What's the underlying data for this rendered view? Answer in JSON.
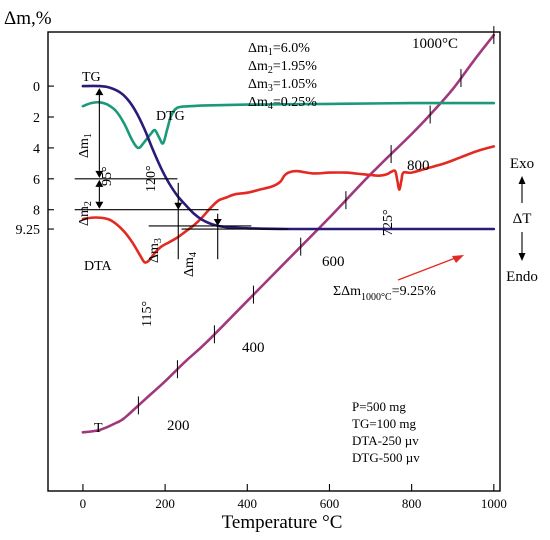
{
  "chart_data": {
    "type": "line",
    "y_title": "Δm,%",
    "x_title": "Temperature °C",
    "xlim": [
      -85,
      1015
    ],
    "x_ticks": [
      0,
      200,
      400,
      600,
      800,
      1000
    ],
    "y_ticks": [
      {
        "label": "0",
        "value": 0
      },
      {
        "label": "2",
        "value": 2
      },
      {
        "label": "4",
        "value": 4
      },
      {
        "label": "6",
        "value": 6
      },
      {
        "label": "8",
        "value": 8
      },
      {
        "label": "9.25",
        "value": 9.25
      }
    ],
    "ylim": [
      -3.5,
      26.2
    ],
    "mass_losses": [
      {
        "prefix": "Δm",
        "sub": "1",
        "value": "=6.0%"
      },
      {
        "prefix": "Δm",
        "sub": "2",
        "value": "=1.95%"
      },
      {
        "prefix": "Δm",
        "sub": "3",
        "value": "=1.05%"
      },
      {
        "prefix": "Δm",
        "sub": "4",
        "value": "=0.25%"
      }
    ],
    "conditions": [
      "P=500 mg",
      "TG=100 mg",
      "DTA-250 µv",
      "DTG-500 µv"
    ],
    "right_axis": {
      "top": "Exo",
      "middle": "ΔT",
      "bottom": "Endo"
    },
    "total_loss": {
      "prefix": "ΣΔm",
      "sub": "1000°C",
      "value": "=9.25%"
    },
    "series": [
      {
        "name": "TG",
        "color": "#2b1a78",
        "x": [
          0,
          40,
          65,
          90,
          110,
          130,
          150,
          170,
          190,
          210,
          230,
          250,
          270,
          290,
          310,
          330,
          360,
          400,
          500,
          700,
          1000
        ],
        "y": [
          0,
          0,
          0.1,
          0.4,
          0.9,
          1.7,
          2.8,
          4.1,
          5.3,
          6.3,
          7.1,
          7.7,
          8.25,
          8.65,
          8.9,
          9.05,
          9.15,
          9.2,
          9.25,
          9.25,
          9.25
        ]
      },
      {
        "name": "DTG",
        "color": "#1a9a78",
        "x": [
          0,
          20,
          40,
          60,
          80,
          100,
          120,
          135,
          150,
          165,
          175,
          185,
          195,
          205,
          215,
          230,
          260,
          300,
          400,
          600,
          800,
          1000
        ],
        "y": [
          1.3,
          1.1,
          1.05,
          1.2,
          1.6,
          2.4,
          3.5,
          4.0,
          3.6,
          3.1,
          2.85,
          3.3,
          3.7,
          2.8,
          1.9,
          1.4,
          1.3,
          1.25,
          1.2,
          1.15,
          1.1,
          1.1
        ]
      },
      {
        "name": "DTA",
        "color": "#e32a22",
        "x": [
          0,
          30,
          60,
          80,
          100,
          120,
          140,
          150,
          160,
          175,
          190,
          210,
          230,
          250,
          270,
          290,
          310,
          330,
          350,
          370,
          400,
          430,
          460,
          480,
          490,
          500,
          520,
          560,
          600,
          640,
          680,
          700,
          720,
          740,
          750,
          760,
          765,
          770,
          775,
          780,
          800,
          840,
          880,
          920,
          960,
          1000
        ],
        "y": [
          8.6,
          8.5,
          8.6,
          8.9,
          9.4,
          10.1,
          11.0,
          11.4,
          11.3,
          10.8,
          10.4,
          10.1,
          9.8,
          9.4,
          9.0,
          8.5,
          7.9,
          7.4,
          7.2,
          7.0,
          6.9,
          6.7,
          6.5,
          6.2,
          5.8,
          5.6,
          5.5,
          5.65,
          5.6,
          5.6,
          5.7,
          5.75,
          5.8,
          5.7,
          5.55,
          5.5,
          6.1,
          6.7,
          6.1,
          5.6,
          5.6,
          5.3,
          5.0,
          4.6,
          4.2,
          3.9
        ]
      },
      {
        "name": "T",
        "color": "#a0387d",
        "x": [
          0,
          20,
          40,
          60,
          80,
          100,
          150,
          200,
          250,
          300,
          400,
          500,
          600,
          700,
          800,
          850,
          900,
          950,
          1000
        ],
        "y": [
          22.4,
          22.35,
          22.25,
          22.05,
          21.8,
          21.5,
          20.3,
          19.1,
          17.8,
          16.6,
          13.9,
          11.2,
          8.5,
          5.7,
          3.1,
          1.7,
          0.2,
          -1.6,
          -3.3
        ]
      }
    ],
    "t_labels": [
      "200",
      "400",
      "600",
      "800",
      "1000°C"
    ],
    "peaks": [
      {
        "text": "95°",
        "temperature": 95
      },
      {
        "text": "120°",
        "temperature": 120
      },
      {
        "text": "115°",
        "temperature": 115
      },
      {
        "text": "725°",
        "temperature": 725
      }
    ],
    "step_labels": [
      {
        "prefix": "Δm",
        "sub": "1"
      },
      {
        "prefix": "Δm",
        "sub": "2"
      },
      {
        "prefix": "Δm",
        "sub": "3"
      },
      {
        "prefix": "Δm",
        "sub": "4"
      }
    ]
  }
}
